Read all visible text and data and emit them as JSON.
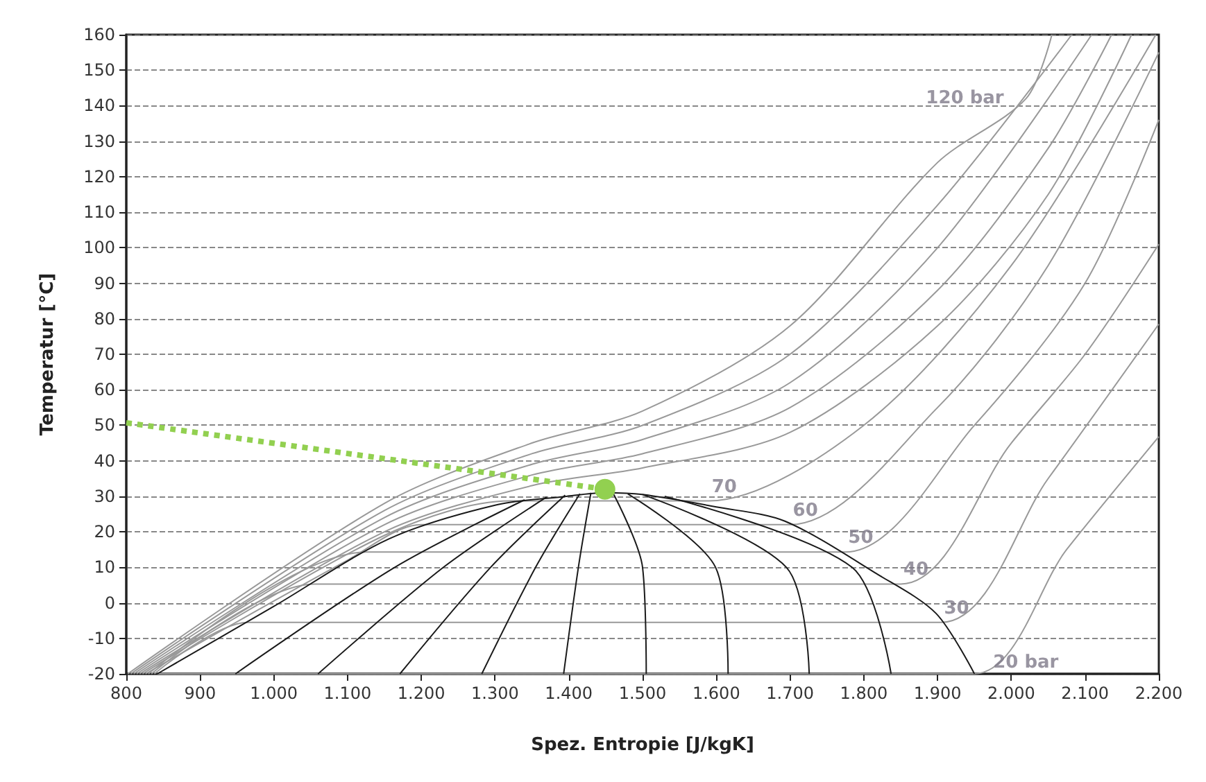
{
  "chart_data": {
    "type": "line",
    "xlabel": "Spez. Entropie [J/kgK]",
    "ylabel": "Temperatur [°C]",
    "xlim": [
      800,
      2200
    ],
    "ylim": [
      -20,
      160
    ],
    "xticks": [
      800,
      900,
      {
        "value": 1000,
        "label": "1.000"
      },
      {
        "value": 1100,
        "label": "1.100"
      },
      {
        "value": 1200,
        "label": "1.200"
      },
      {
        "value": 1300,
        "label": "1.300"
      },
      {
        "value": 1400,
        "label": "1.400"
      },
      {
        "value": 1500,
        "label": "1.500"
      },
      {
        "value": 1600,
        "label": "1.600"
      },
      {
        "value": 1700,
        "label": "1.700"
      },
      {
        "value": 1800,
        "label": "1.800"
      },
      {
        "value": 1900,
        "label": "1.900"
      },
      {
        "value": 2000,
        "label": "2.000"
      },
      {
        "value": 2100,
        "label": "2.100"
      },
      {
        "value": 2200,
        "label": "2.200"
      }
    ],
    "yticks": [
      -20,
      -10,
      0,
      10,
      20,
      30,
      40,
      50,
      60,
      70,
      80,
      90,
      100,
      110,
      120,
      130,
      140,
      150,
      160
    ],
    "grid": "y",
    "line_style": "solid",
    "series": [
      {
        "color": "#999999",
        "x": [
          842,
          1949,
          2075,
          2200
        ],
        "values": [
          -20,
          -20,
          15,
          46.8
        ]
      },
      {
        "color": "#999999",
        "x": [
          838,
          965,
          1905,
          2050,
          2200
        ],
        "values": [
          -20,
          -5.5,
          -5.5,
          35,
          78.5
        ]
      },
      {
        "color": "#999999",
        "x": [
          834,
          1055,
          1850,
          2000,
          2100,
          2200
        ],
        "values": [
          -20,
          5.3,
          5.3,
          45,
          70,
          101
        ]
      },
      {
        "color": "#999999",
        "x": [
          830,
          1125,
          1775,
          1950,
          2100,
          2200
        ],
        "values": [
          -20,
          14.3,
          14.3,
          50,
          90,
          136
        ]
      },
      {
        "color": "#999999",
        "x": [
          826,
          1100,
          1200,
          1700,
          1900,
          2050,
          2200
        ],
        "values": [
          -20,
          12,
          22,
          22,
          55,
          95,
          155
        ]
      },
      {
        "color": "#999999",
        "x": [
          822,
          1150,
          1320,
          1590,
          1800,
          2000,
          2196
        ],
        "values": [
          -20,
          19,
          28.7,
          28.7,
          50,
          95,
          160
        ]
      },
      {
        "color": "#999999",
        "x": [
          818,
          1150,
          1350,
          1500,
          1700,
          1900,
          2050,
          2163
        ],
        "values": [
          -20,
          20,
          33,
          38,
          48,
          78,
          115,
          160
        ]
      },
      {
        "color": "#999999",
        "x": [
          814,
          1150,
          1350,
          1500,
          1700,
          1900,
          2050,
          2136
        ],
        "values": [
          -20,
          22,
          36,
          42,
          55,
          88,
          128,
          160
        ]
      },
      {
        "color": "#999999",
        "x": [
          810,
          1150,
          1350,
          1500,
          1700,
          1900,
          2109
        ],
        "values": [
          -20,
          24,
          39,
          46,
          62,
          100,
          160
        ]
      },
      {
        "color": "#999999",
        "x": [
          806,
          1150,
          1350,
          1500,
          1700,
          1900,
          2082
        ],
        "values": [
          -20,
          26,
          42,
          50,
          70,
          112,
          160
        ]
      },
      {
        "color": "#999999",
        "x": [
          802,
          1150,
          1350,
          1500,
          1700,
          1900,
          2020,
          2055
        ],
        "values": [
          -20,
          28,
          45,
          54,
          78,
          124,
          142,
          160
        ]
      },
      {
        "color": "#1a1a1a",
        "x": [
          842,
          1000,
          1156,
          1300,
          1397,
          1449,
          1500,
          1600,
          1693,
          1819,
          1898,
          1950
        ],
        "values": [
          -20,
          -1,
          18,
          27.5,
          30,
          31,
          30.5,
          27,
          23,
          8,
          -3,
          -20
        ]
      },
      {
        "color": "#1a1a1a",
        "x": [
          948,
          1164,
          1340
        ],
        "values": [
          -20,
          10,
          29
        ]
      },
      {
        "color": "#1a1a1a",
        "x": [
          1060,
          1230,
          1370
        ],
        "values": [
          -20,
          10,
          29.8
        ]
      },
      {
        "color": "#1a1a1a",
        "x": [
          1171,
          1294,
          1395
        ],
        "values": [
          -20,
          10,
          30.3
        ]
      },
      {
        "color": "#1a1a1a",
        "x": [
          1282,
          1355,
          1415
        ],
        "values": [
          -20,
          10,
          30.7
        ]
      },
      {
        "color": "#1a1a1a",
        "x": [
          1393,
          1413,
          1430
        ],
        "values": [
          -20,
          10,
          31
        ]
      },
      {
        "color": "#1a1a1a",
        "x": [
          1505,
          1500,
          1460
        ],
        "values": [
          -20,
          10,
          30.9
        ]
      },
      {
        "color": "#1a1a1a",
        "x": [
          1616,
          1599,
          1480
        ],
        "values": [
          -20,
          10,
          30.7
        ]
      },
      {
        "color": "#1a1a1a",
        "x": [
          1726,
          1695,
          1500
        ],
        "values": [
          -20,
          10,
          30.5
        ]
      },
      {
        "color": "#1a1a1a",
        "x": [
          1837,
          1784,
          1530
        ],
        "values": [
          -20,
          10,
          30
        ]
      },
      {
        "color": "#92d050",
        "line_style": "dotted",
        "x": [
          800,
          1449
        ],
        "values": [
          50.7,
          32
        ]
      },
      {
        "type": "scatter",
        "marker": "circle",
        "color": "#92d050",
        "x": [
          1449
        ],
        "values": [
          32
        ]
      }
    ],
    "annotations": [
      {
        "text": "120 bar",
        "x": 2020,
        "y": 142
      },
      {
        "text": "70",
        "x": 1590,
        "y": 28.7
      },
      {
        "text": "60",
        "x": 1700,
        "y": 22
      },
      {
        "text": "50",
        "x": 1775,
        "y": 14.3
      },
      {
        "text": "40",
        "x": 1850,
        "y": 5.3
      },
      {
        "text": "30",
        "x": 1905,
        "y": -5.5
      },
      {
        "text": "20 bar",
        "x": 1949,
        "y": -20
      }
    ]
  }
}
